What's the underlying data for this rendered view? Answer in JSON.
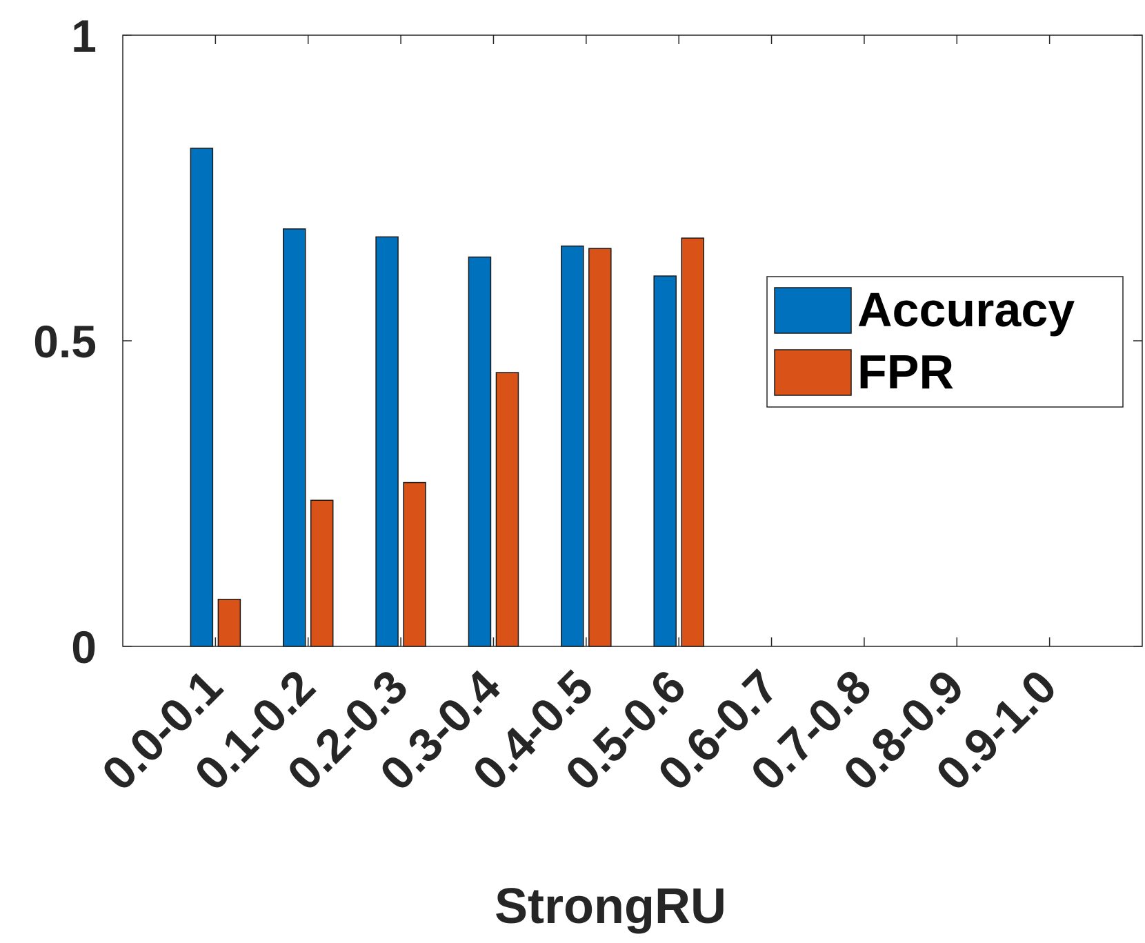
{
  "chart_data": {
    "type": "bar",
    "categories": [
      "0.0-0.1",
      "0.1-0.2",
      "0.2-0.3",
      "0.3-0.4",
      "0.4-0.5",
      "0.5-0.6",
      "0.6-0.7",
      "0.7-0.8",
      "0.8-0.9",
      "0.9-1.0"
    ],
    "series": [
      {
        "name": "Accuracy",
        "color": "#0072BD",
        "values": [
          0.815,
          0.683,
          0.67,
          0.637,
          0.655,
          0.606,
          0,
          0,
          0,
          0
        ]
      },
      {
        "name": "FPR",
        "color": "#D95319",
        "values": [
          0.077,
          0.239,
          0.268,
          0.448,
          0.651,
          0.668,
          0,
          0,
          0,
          0
        ]
      }
    ],
    "xlabel": "StrongRU",
    "ylabel": "",
    "ylim": [
      0,
      1
    ],
    "yticks": [
      "0",
      "0.5",
      "1"
    ],
    "legend_position": "right",
    "grid": false
  }
}
